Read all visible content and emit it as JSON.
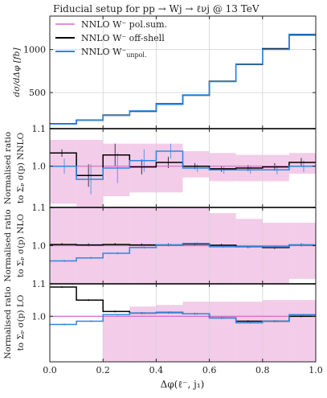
{
  "colors": {
    "pol_sum": "#d86ec8",
    "off_shell": "#000000",
    "unpol": "#2f86e2",
    "band": "#f2cce9",
    "grid": "#d3d3d3",
    "frame": "#222222"
  },
  "chart_data": [
    {
      "type": "line",
      "panel": "main",
      "title": "Fiducial setup for pp → Wj → ℓνj @ 13 TeV",
      "ylabel": "dσ/dΔφ [fb]",
      "xlabel": "",
      "xlim": [
        0,
        1
      ],
      "ylim": [
        80,
        1390
      ],
      "yticks": [
        500,
        1000
      ],
      "ytick_labels": [
        "500",
        "1000"
      ],
      "grid": true,
      "legend": {
        "placement": "top-left"
      },
      "x_edges": [
        0,
        0.1,
        0.2,
        0.3,
        0.4,
        0.5,
        0.6,
        0.7,
        0.8,
        0.9,
        1.0
      ],
      "series": [
        {
          "name": "NNLO W⁻ pol.sum.",
          "color_key": "pol_sum",
          "width": 1.3,
          "values": [
            135,
            180,
            235,
            285,
            365,
            470,
            630,
            830,
            1005,
            1175
          ]
        },
        {
          "name": "NNLO W⁻ off-shell",
          "color_key": "off_shell",
          "width": 1.6,
          "values": [
            137,
            178,
            237,
            282,
            368,
            468,
            632,
            828,
            1010,
            1170
          ]
        },
        {
          "name": "NNLO W⁻",
          "name_sub": "unpol.",
          "color_key": "unpol",
          "width": 1.6,
          "values": [
            134,
            181,
            233,
            287,
            363,
            472,
            628,
            832,
            1003,
            1178
          ]
        }
      ]
    },
    {
      "type": "line",
      "panel": "ratio-nnlo",
      "ylabel": "Normalised ratio",
      "ylabel2": "to Σₚ σ(p) NNLO",
      "xlim": [
        0,
        1
      ],
      "ylim": [
        0.89,
        1.1
      ],
      "yticks": [
        1.0,
        1.1
      ],
      "ytick_labels": [
        "1.0",
        "1.1"
      ],
      "grid": true,
      "x_edges": [
        0,
        0.1,
        0.2,
        0.3,
        0.4,
        0.5,
        0.6,
        0.7,
        0.8,
        0.9,
        1.0
      ],
      "band": {
        "color_key": "band",
        "lower": [
          0.9,
          0.89,
          0.92,
          0.93,
          0.93,
          0.97,
          0.96,
          0.96,
          0.96,
          0.98
        ],
        "upper": [
          1.07,
          1.07,
          1.06,
          1.06,
          1.06,
          1.04,
          1.035,
          1.03,
          1.03,
          1.035
        ]
      },
      "series": [
        {
          "name": "NNLO W⁻ pol.sum.",
          "color_key": "pol_sum",
          "width": 1.2,
          "values": [
            1.0,
            1.0,
            1.0,
            1.0,
            1.0,
            1.0,
            1.0,
            1.0,
            1.0,
            1.0
          ],
          "errors": []
        },
        {
          "name": "NNLO W⁻ off-shell",
          "color_key": "off_shell",
          "width": 1.5,
          "values": [
            1.035,
            0.975,
            1.03,
            0.998,
            1.01,
            1.0,
            0.993,
            0.995,
            0.998,
            1.01
          ],
          "errors": [
            0.01,
            0.03,
            0.03,
            0.02,
            0.015,
            0.008,
            0.008,
            0.008,
            0.01,
            0.012
          ]
        },
        {
          "name": "NNLO W⁻ unpol.",
          "color_key": "unpol",
          "width": 1.5,
          "values": [
            1.0,
            0.965,
            0.995,
            1.015,
            1.04,
            0.995,
            0.99,
            0.99,
            0.99,
            1.0
          ],
          "errors": [
            0.02,
            0.04,
            0.04,
            0.03,
            0.02,
            0.01,
            0.01,
            0.01,
            0.012,
            0.015
          ]
        }
      ]
    },
    {
      "type": "line",
      "panel": "ratio-nlo",
      "ylabel": "Normalised ratio",
      "ylabel2": "to Σₚ σ(p) NLO",
      "xlim": [
        0,
        1
      ],
      "ylim": [
        0.9,
        1.1
      ],
      "yticks": [
        1.0,
        1.1
      ],
      "ytick_labels": [
        "1.0",
        "1.1"
      ],
      "grid": true,
      "x_edges": [
        0,
        0.1,
        0.2,
        0.3,
        0.4,
        0.5,
        0.6,
        0.7,
        0.8,
        0.9,
        1.0
      ],
      "band": {
        "color_key": "band",
        "lower": [
          0.9,
          0.9,
          0.9,
          0.9,
          0.9,
          0.9,
          0.9,
          0.9,
          0.9,
          0.913
        ],
        "upper": [
          1.11,
          1.11,
          1.1,
          1.1,
          1.1,
          1.1,
          1.085,
          1.07,
          1.06,
          1.06
        ]
      },
      "series": [
        {
          "name": "NNLO W⁻ pol.sum.",
          "color_key": "pol_sum",
          "width": 1.2,
          "values": [
            1.0,
            1.0,
            1.0,
            1.0,
            1.0,
            1.0,
            1.0,
            1.0,
            1.0,
            1.0
          ],
          "errors": []
        },
        {
          "name": "NNLO W⁻ off-shell",
          "color_key": "off_shell",
          "width": 1.5,
          "values": [
            1.003,
            1.002,
            1.003,
            1.002,
            1.002,
            1.004,
            1.001,
            0.997,
            0.995,
            1.002
          ],
          "errors": [
            0.004,
            0.004,
            0.004,
            0.004,
            0.004,
            0.004,
            0.004,
            0.004,
            0.004,
            0.004
          ]
        },
        {
          "name": "NNLO W⁻ unpol.",
          "color_key": "unpol",
          "width": 1.5,
          "values": [
            0.96,
            0.968,
            0.98,
            0.995,
            1.002,
            1.006,
            0.997,
            0.997,
            0.997,
            1.002
          ],
          "errors": [
            0.003,
            0.003,
            0.003,
            0.003,
            0.003,
            0.003,
            0.003,
            0.003,
            0.003,
            0.003
          ]
        }
      ]
    },
    {
      "type": "line",
      "panel": "ratio-lo",
      "ylabel": "Normalised ratio",
      "ylabel2": "to Σₚ σ(p) LO",
      "xlabel": "Δφ(ℓ⁻, j₁)",
      "xlim": [
        0,
        1
      ],
      "ylim": [
        0.86,
        1.1
      ],
      "yticks": [
        1.0,
        1.1
      ],
      "ytick_labels": [
        "1.0",
        "1.1"
      ],
      "xticks": [
        0,
        0.2,
        0.4,
        0.6,
        0.8,
        1.0
      ],
      "xtick_labels": [
        "0.0",
        "0.2",
        "0.4",
        "0.6",
        "0.8",
        "1.0"
      ],
      "grid": true,
      "x_edges": [
        0,
        0.1,
        0.2,
        0.3,
        0.4,
        0.5,
        0.6,
        0.7,
        0.8,
        0.9,
        1.0
      ],
      "band": {
        "color_key": "band",
        "lower": [
          0.93,
          0.93,
          0.86,
          0.86,
          0.86,
          0.86,
          0.86,
          0.86,
          0.86,
          0.86
        ],
        "upper": [
          0.93,
          0.93,
          1.0,
          1.03,
          1.035,
          1.045,
          1.045,
          1.045,
          1.05,
          1.05
        ]
      },
      "series": [
        {
          "name": "NNLO W⁻ pol.sum.",
          "color_key": "pol_sum",
          "width": 1.2,
          "values": [
            1.0,
            1.0,
            1.0,
            1.0,
            1.0,
            1.0,
            1.0,
            1.0,
            1.0,
            1.0
          ],
          "errors": []
        },
        {
          "name": "NNLO W⁻ off-shell",
          "color_key": "off_shell",
          "width": 1.5,
          "values": [
            1.09,
            1.05,
            1.015,
            1.01,
            1.012,
            1.008,
            0.995,
            0.985,
            0.985,
            1.0
          ],
          "errors": [
            0.003,
            0.003,
            0.003,
            0.003,
            0.003,
            0.003,
            0.003,
            0.003,
            0.003,
            0.003
          ]
        },
        {
          "name": "NNLO W⁻ unpol.",
          "color_key": "unpol",
          "width": 1.5,
          "values": [
            0.975,
            0.985,
            1.005,
            1.01,
            1.013,
            1.008,
            0.995,
            0.98,
            0.985,
            1.005
          ],
          "errors": [
            0.003,
            0.003,
            0.003,
            0.003,
            0.003,
            0.003,
            0.003,
            0.003,
            0.003,
            0.003
          ]
        }
      ]
    }
  ]
}
